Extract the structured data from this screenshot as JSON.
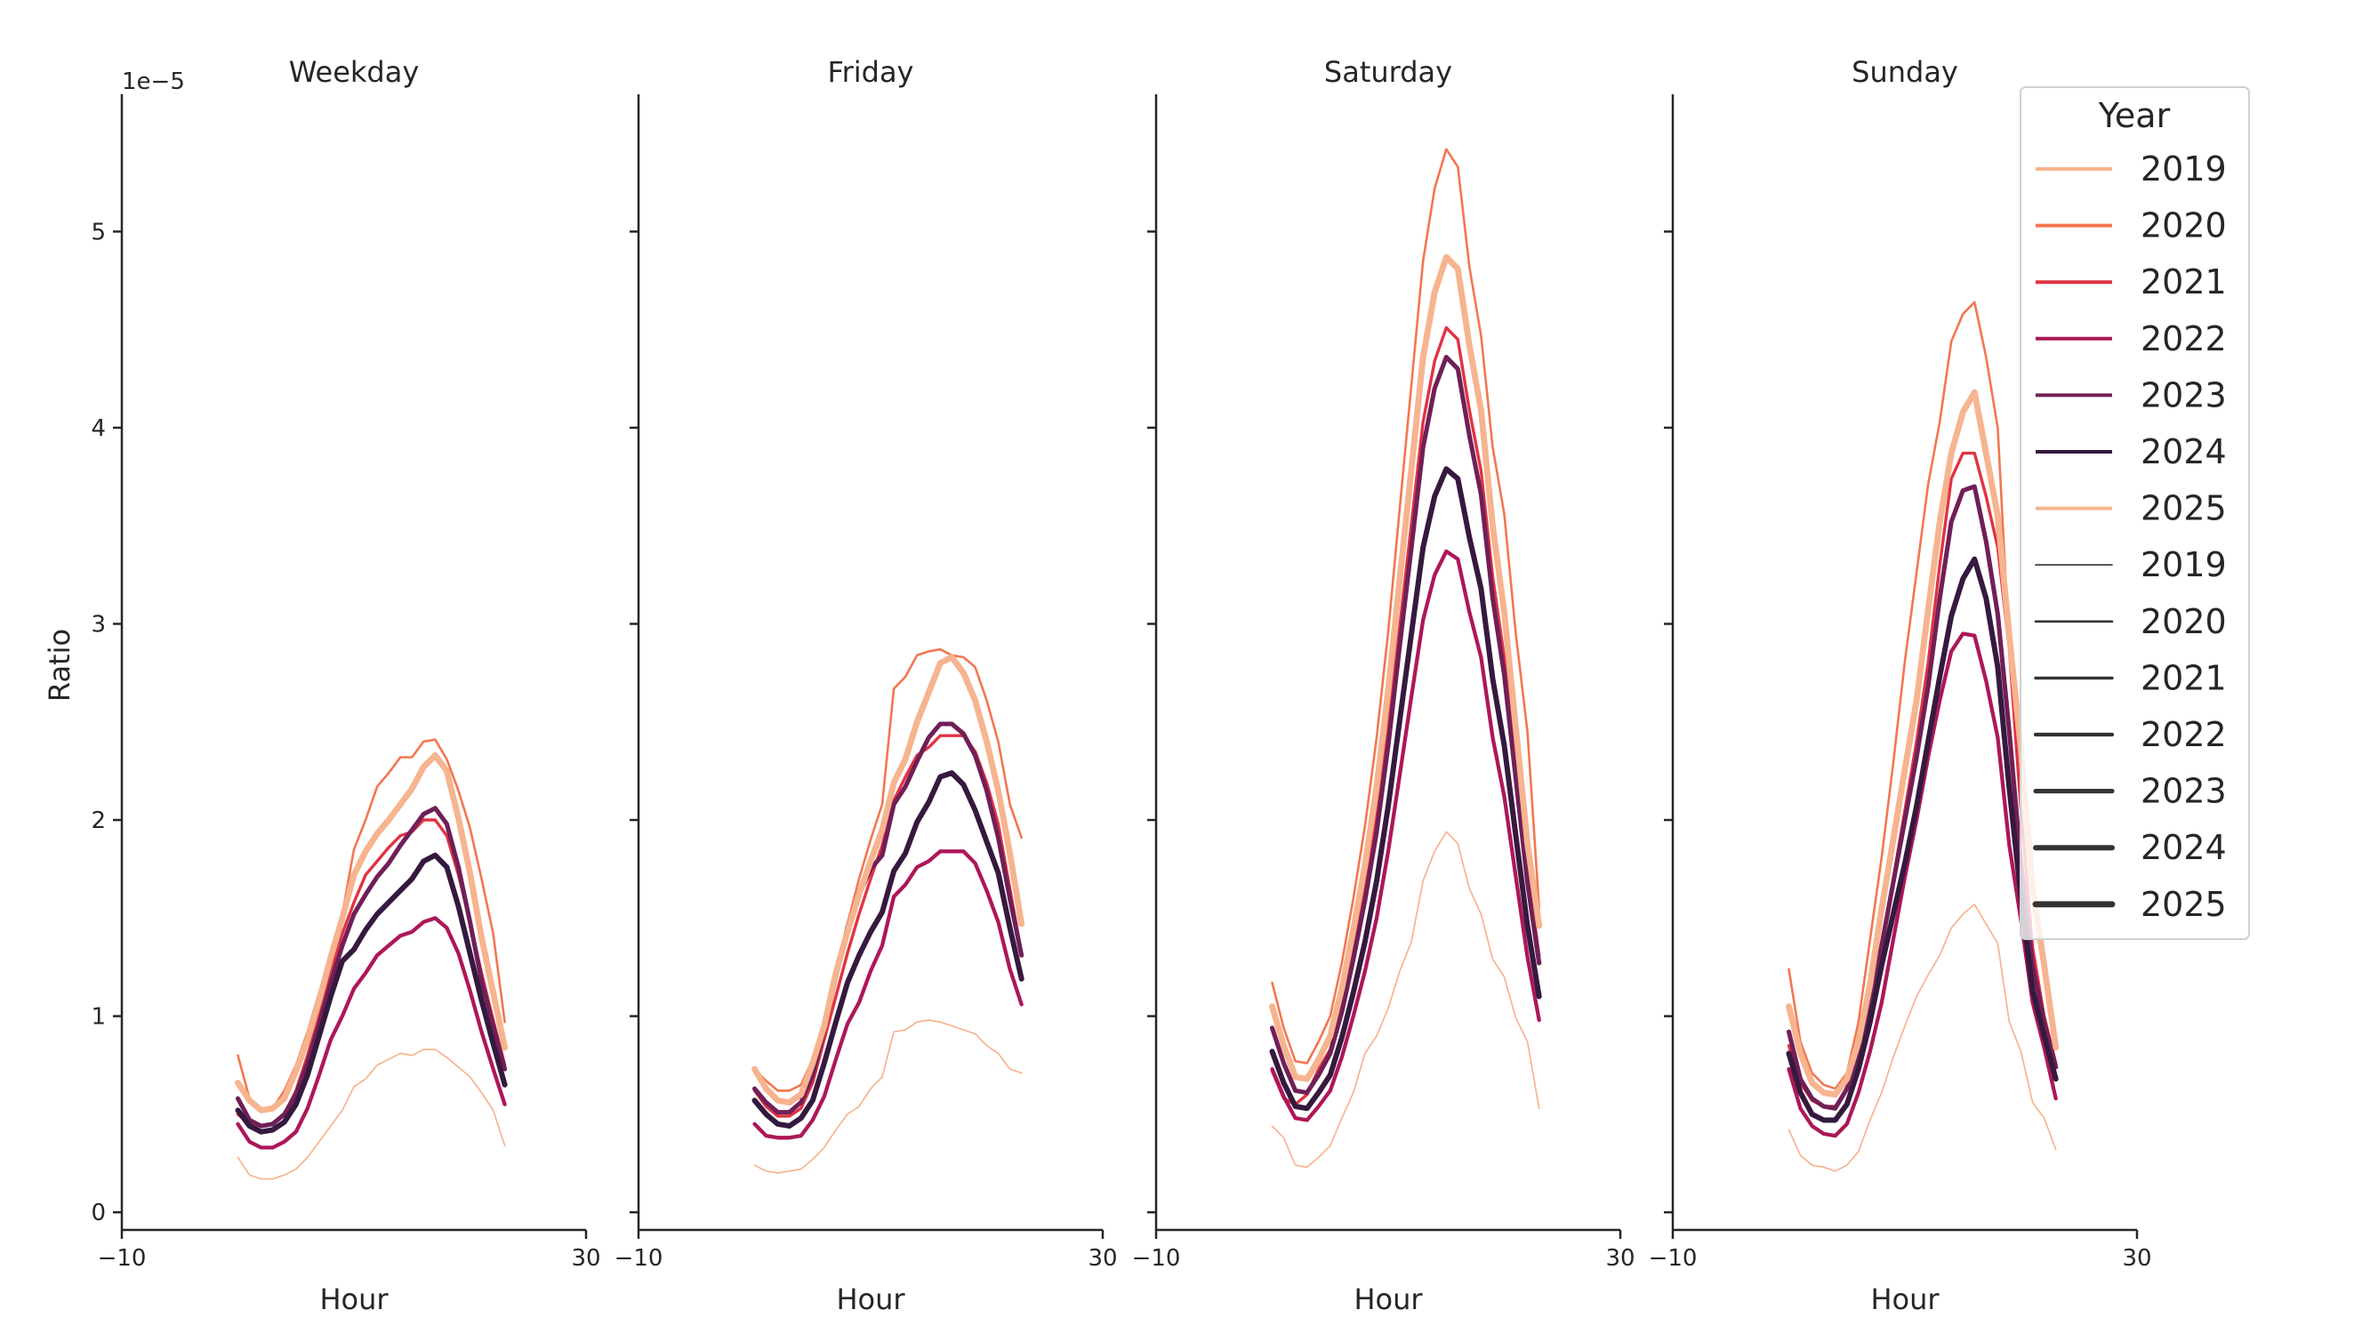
{
  "chart_data": [
    {
      "type": "line",
      "title": "Weekday",
      "xlabel": "Hour",
      "ylabel": "Ratio",
      "y_offset_label": "1e−5",
      "xlim": [
        -10,
        30
      ],
      "ylim": [
        -0.09,
        5.7
      ],
      "xticks": [
        "−10",
        "30"
      ],
      "yticks": [
        "0",
        "1",
        "2",
        "3",
        "4",
        "5"
      ],
      "x": [
        0,
        1,
        2,
        3,
        4,
        5,
        6,
        7,
        8,
        9,
        10,
        11,
        12,
        13,
        14,
        15,
        16,
        17,
        18,
        19,
        20,
        21,
        22,
        23
      ],
      "series": [
        {
          "name": "2019",
          "values": [
            0.28,
            0.19,
            0.17,
            0.17,
            0.19,
            0.22,
            0.28,
            0.36,
            0.44,
            0.52,
            0.64,
            0.68,
            0.75,
            0.78,
            0.81,
            0.8,
            0.83,
            0.83,
            0.79,
            0.74,
            0.69,
            0.61,
            0.52,
            0.34
          ]
        },
        {
          "name": "2020",
          "values": [
            0.8,
            0.58,
            0.52,
            0.53,
            0.62,
            0.75,
            0.92,
            1.12,
            1.32,
            1.52,
            1.85,
            2.0,
            2.17,
            2.24,
            2.32,
            2.32,
            2.4,
            2.41,
            2.31,
            2.15,
            1.96,
            1.7,
            1.42,
            0.97
          ]
        },
        {
          "name": "2021",
          "values": [
            0.5,
            0.45,
            0.44,
            0.45,
            0.5,
            0.62,
            0.8,
            1.0,
            1.22,
            1.42,
            1.58,
            1.72,
            1.79,
            1.86,
            1.92,
            1.94,
            2.0,
            2.0,
            1.92,
            1.72,
            1.48,
            1.22,
            0.98,
            0.75
          ]
        },
        {
          "name": "2022",
          "values": [
            0.45,
            0.36,
            0.33,
            0.33,
            0.36,
            0.41,
            0.53,
            0.7,
            0.88,
            1.0,
            1.14,
            1.22,
            1.31,
            1.36,
            1.41,
            1.43,
            1.48,
            1.5,
            1.45,
            1.32,
            1.13,
            0.92,
            0.73,
            0.55
          ]
        },
        {
          "name": "2023",
          "values": [
            0.58,
            0.47,
            0.44,
            0.45,
            0.5,
            0.6,
            0.76,
            0.96,
            1.17,
            1.36,
            1.52,
            1.62,
            1.71,
            1.78,
            1.87,
            1.95,
            2.03,
            2.06,
            1.98,
            1.76,
            1.48,
            1.18,
            0.95,
            0.73
          ]
        },
        {
          "name": "2024",
          "values": [
            0.52,
            0.44,
            0.41,
            0.42,
            0.46,
            0.55,
            0.7,
            0.9,
            1.1,
            1.28,
            1.34,
            1.44,
            1.52,
            1.58,
            1.64,
            1.7,
            1.79,
            1.82,
            1.76,
            1.56,
            1.32,
            1.08,
            0.86,
            0.65
          ]
        },
        {
          "name": "2025",
          "values": [
            0.66,
            0.57,
            0.52,
            0.53,
            0.58,
            0.72,
            0.88,
            1.08,
            1.3,
            1.5,
            1.72,
            1.84,
            1.93,
            2.0,
            2.08,
            2.16,
            2.27,
            2.33,
            2.25,
            2.01,
            1.73,
            1.4,
            1.12,
            0.84
          ]
        }
      ]
    },
    {
      "type": "line",
      "title": "Friday",
      "xlabel": "Hour",
      "xlim": [
        -10,
        30
      ],
      "ylim": [
        -0.09,
        5.7
      ],
      "xticks": [
        "−10",
        "30"
      ],
      "x": [
        0,
        1,
        2,
        3,
        4,
        5,
        6,
        7,
        8,
        9,
        10,
        11,
        12,
        13,
        14,
        15,
        16,
        17,
        18,
        19,
        20,
        21,
        22,
        23
      ],
      "series": [
        {
          "name": "2019",
          "values": [
            0.24,
            0.21,
            0.2,
            0.21,
            0.22,
            0.27,
            0.33,
            0.42,
            0.5,
            0.54,
            0.63,
            0.69,
            0.92,
            0.93,
            0.97,
            0.98,
            0.97,
            0.95,
            0.93,
            0.91,
            0.85,
            0.81,
            0.73,
            0.71
          ]
        },
        {
          "name": "2020",
          "values": [
            0.73,
            0.67,
            0.62,
            0.62,
            0.65,
            0.78,
            0.97,
            1.2,
            1.47,
            1.7,
            1.9,
            2.08,
            2.67,
            2.73,
            2.84,
            2.86,
            2.87,
            2.84,
            2.83,
            2.78,
            2.61,
            2.4,
            2.08,
            1.91
          ]
        },
        {
          "name": "2021",
          "values": [
            0.62,
            0.54,
            0.49,
            0.49,
            0.53,
            0.66,
            0.88,
            1.1,
            1.32,
            1.52,
            1.7,
            1.87,
            2.1,
            2.22,
            2.33,
            2.37,
            2.43,
            2.43,
            2.43,
            2.35,
            2.19,
            1.98,
            1.65,
            1.32
          ]
        },
        {
          "name": "2022",
          "values": [
            0.45,
            0.39,
            0.38,
            0.38,
            0.39,
            0.47,
            0.59,
            0.78,
            0.96,
            1.07,
            1.23,
            1.36,
            1.61,
            1.67,
            1.76,
            1.79,
            1.84,
            1.84,
            1.84,
            1.78,
            1.64,
            1.48,
            1.24,
            1.06
          ]
        },
        {
          "name": "2023",
          "values": [
            0.63,
            0.56,
            0.51,
            0.51,
            0.56,
            0.7,
            0.93,
            1.2,
            1.45,
            1.62,
            1.75,
            1.82,
            2.08,
            2.17,
            2.3,
            2.42,
            2.49,
            2.49,
            2.44,
            2.33,
            2.15,
            1.91,
            1.6,
            1.31
          ]
        },
        {
          "name": "2024",
          "values": [
            0.57,
            0.5,
            0.45,
            0.44,
            0.48,
            0.57,
            0.76,
            0.97,
            1.17,
            1.31,
            1.43,
            1.53,
            1.74,
            1.83,
            1.99,
            2.09,
            2.22,
            2.24,
            2.18,
            2.05,
            1.89,
            1.73,
            1.45,
            1.19
          ]
        },
        {
          "name": "2025",
          "values": [
            0.73,
            0.63,
            0.57,
            0.56,
            0.6,
            0.76,
            0.95,
            1.22,
            1.43,
            1.62,
            1.79,
            1.95,
            2.19,
            2.31,
            2.5,
            2.65,
            2.8,
            2.83,
            2.75,
            2.61,
            2.4,
            2.15,
            1.83,
            1.47
          ]
        }
      ]
    },
    {
      "type": "line",
      "title": "Saturday",
      "xlabel": "Hour",
      "xlim": [
        -10,
        30
      ],
      "ylim": [
        -0.09,
        5.7
      ],
      "xticks": [
        "−10",
        "30"
      ],
      "x": [
        0,
        1,
        2,
        3,
        4,
        5,
        6,
        7,
        8,
        9,
        10,
        11,
        12,
        13,
        14,
        15,
        16,
        17,
        18,
        19,
        20,
        21,
        22,
        23
      ],
      "series": [
        {
          "name": "2019",
          "values": [
            0.44,
            0.38,
            0.24,
            0.23,
            0.28,
            0.34,
            0.48,
            0.61,
            0.81,
            0.9,
            1.04,
            1.23,
            1.38,
            1.69,
            1.84,
            1.94,
            1.88,
            1.65,
            1.52,
            1.29,
            1.2,
            0.99,
            0.87,
            0.53
          ]
        },
        {
          "name": "2020",
          "values": [
            1.17,
            0.94,
            0.77,
            0.76,
            0.87,
            1.0,
            1.27,
            1.6,
            1.97,
            2.42,
            2.96,
            3.59,
            4.22,
            4.85,
            5.22,
            5.42,
            5.33,
            4.82,
            4.47,
            3.9,
            3.56,
            2.95,
            2.45,
            1.55
          ]
        },
        {
          "name": "2021",
          "values": [
            0.72,
            0.58,
            0.55,
            0.6,
            0.73,
            0.83,
            1.06,
            1.33,
            1.64,
            2.01,
            2.46,
            2.99,
            3.51,
            4.03,
            4.34,
            4.51,
            4.45,
            4.09,
            3.78,
            3.24,
            2.83,
            2.28,
            1.74,
            1.31
          ]
        },
        {
          "name": "2022",
          "values": [
            0.73,
            0.59,
            0.48,
            0.47,
            0.54,
            0.62,
            0.79,
            1.0,
            1.23,
            1.5,
            1.84,
            2.23,
            2.63,
            3.02,
            3.25,
            3.37,
            3.33,
            3.06,
            2.83,
            2.42,
            2.12,
            1.71,
            1.3,
            0.98
          ]
        },
        {
          "name": "2023",
          "values": [
            0.94,
            0.76,
            0.62,
            0.61,
            0.7,
            0.81,
            1.02,
            1.29,
            1.59,
            1.94,
            2.38,
            2.89,
            3.39,
            3.9,
            4.2,
            4.36,
            4.3,
            3.96,
            3.66,
            3.13,
            2.74,
            2.21,
            1.68,
            1.27
          ]
        },
        {
          "name": "2024",
          "values": [
            0.82,
            0.66,
            0.54,
            0.53,
            0.61,
            0.7,
            0.89,
            1.12,
            1.38,
            1.69,
            2.07,
            2.51,
            2.95,
            3.39,
            3.65,
            3.79,
            3.74,
            3.44,
            3.18,
            2.72,
            2.38,
            1.92,
            1.46,
            1.1
          ]
        },
        {
          "name": "2025",
          "values": [
            1.05,
            0.85,
            0.69,
            0.68,
            0.78,
            0.9,
            1.14,
            1.44,
            1.77,
            2.17,
            2.66,
            3.23,
            3.79,
            4.36,
            4.69,
            4.87,
            4.81,
            4.42,
            4.09,
            3.5,
            3.06,
            2.47,
            1.88,
            1.46
          ]
        }
      ]
    },
    {
      "type": "line",
      "title": "Sunday",
      "xlabel": "Hour",
      "xlim": [
        -10,
        30
      ],
      "ylim": [
        -0.09,
        5.7
      ],
      "xticks": [
        "−10",
        "30"
      ],
      "x": [
        0,
        1,
        2,
        3,
        4,
        5,
        6,
        7,
        8,
        9,
        10,
        11,
        12,
        13,
        14,
        15,
        16,
        17,
        18,
        19,
        20,
        21,
        22,
        23
      ],
      "series": [
        {
          "name": "2019",
          "values": [
            0.42,
            0.29,
            0.24,
            0.23,
            0.21,
            0.24,
            0.31,
            0.47,
            0.61,
            0.79,
            0.95,
            1.1,
            1.21,
            1.31,
            1.45,
            1.52,
            1.57,
            1.47,
            1.37,
            0.97,
            0.82,
            0.56,
            0.48,
            0.32
          ]
        },
        {
          "name": "2020",
          "values": [
            1.24,
            0.87,
            0.71,
            0.65,
            0.63,
            0.71,
            0.97,
            1.39,
            1.81,
            2.29,
            2.81,
            3.26,
            3.71,
            4.03,
            4.44,
            4.58,
            4.64,
            4.36,
            4.0,
            2.87,
            2.39,
            1.71,
            1.32,
            0.87
          ]
        },
        {
          "name": "2021",
          "values": [
            0.85,
            0.66,
            0.57,
            0.54,
            0.54,
            0.63,
            0.82,
            1.08,
            1.38,
            1.7,
            2.05,
            2.4,
            2.8,
            3.3,
            3.74,
            3.87,
            3.87,
            3.65,
            3.39,
            2.87,
            2.05,
            1.35,
            1.0,
            0.76
          ]
        },
        {
          "name": "2022",
          "values": [
            0.73,
            0.53,
            0.44,
            0.4,
            0.39,
            0.45,
            0.61,
            0.82,
            1.07,
            1.39,
            1.71,
            2.0,
            2.32,
            2.61,
            2.86,
            2.95,
            2.94,
            2.71,
            2.42,
            1.87,
            1.49,
            1.07,
            0.84,
            0.58
          ]
        },
        {
          "name": "2023",
          "values": [
            0.92,
            0.68,
            0.58,
            0.54,
            0.53,
            0.63,
            0.81,
            1.07,
            1.36,
            1.68,
            2.0,
            2.32,
            2.68,
            3.13,
            3.52,
            3.68,
            3.7,
            3.42,
            3.05,
            2.45,
            1.78,
            1.26,
            0.97,
            0.74
          ]
        },
        {
          "name": "2024",
          "values": [
            0.81,
            0.61,
            0.5,
            0.47,
            0.47,
            0.55,
            0.73,
            0.97,
            1.26,
            1.52,
            1.78,
            2.07,
            2.4,
            2.73,
            3.04,
            3.23,
            3.33,
            3.13,
            2.78,
            2.16,
            1.61,
            1.13,
            0.9,
            0.68
          ]
        },
        {
          "name": "2025",
          "values": [
            1.05,
            0.81,
            0.66,
            0.61,
            0.6,
            0.68,
            0.87,
            1.16,
            1.55,
            1.9,
            2.26,
            2.61,
            3.07,
            3.52,
            3.87,
            4.08,
            4.18,
            3.87,
            3.55,
            2.94,
            2.36,
            1.65,
            1.26,
            0.84
          ]
        }
      ]
    }
  ],
  "series_style": {
    "2019": {
      "color": "#f6b48f"
    },
    "2020": {
      "color": "#f37651"
    },
    "2021": {
      "color": "#e13342"
    },
    "2022": {
      "color": "#ad1759"
    },
    "2023": {
      "color": "#701f57"
    },
    "2024": {
      "color": "#35193e"
    },
    "2025": {
      "color": "#f6b48f"
    }
  },
  "legend": {
    "title": "Year",
    "placement": "top-right",
    "hue_entries": [
      "2019",
      "2020",
      "2021",
      "2022",
      "2023",
      "2024",
      "2025"
    ],
    "size_entries": [
      "2019",
      "2020",
      "2021",
      "2022",
      "2023",
      "2024",
      "2025"
    ],
    "size_color": "#333333"
  }
}
